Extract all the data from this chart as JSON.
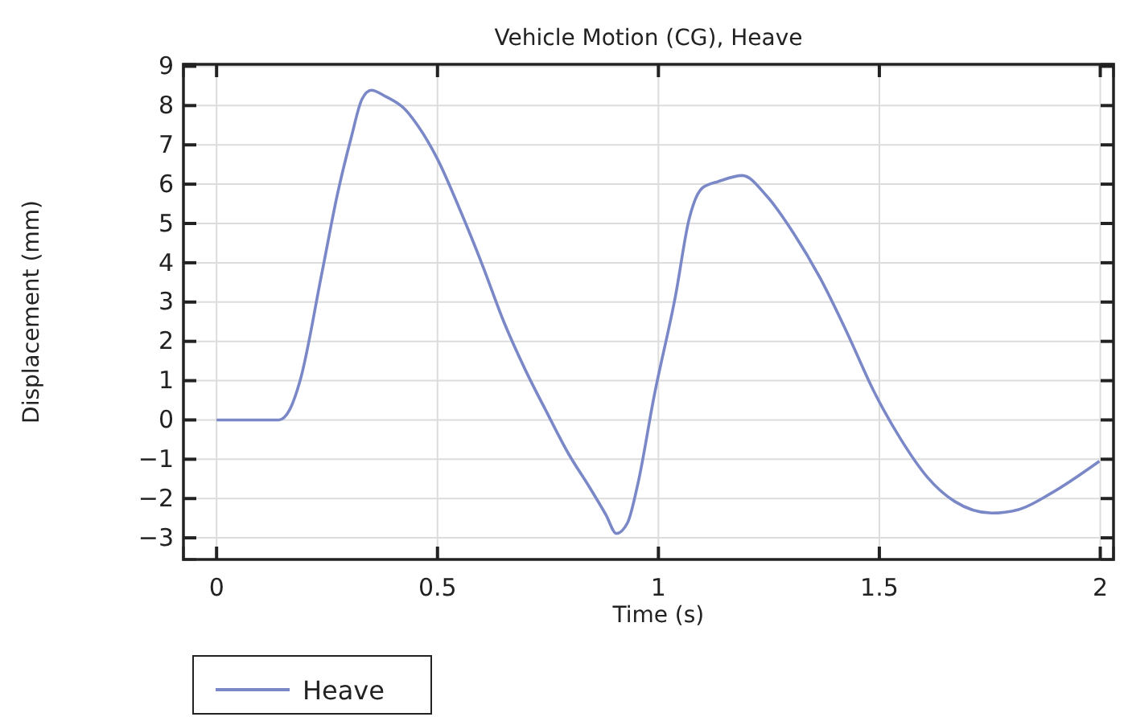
{
  "chart_data": {
    "type": "line",
    "title": "Vehicle Motion (CG), Heave",
    "xlabel": "Time (s)",
    "ylabel": "Displacement (mm)",
    "xlim": [
      -0.075,
      2.03
    ],
    "ylim": [
      -3.55,
      9.05
    ],
    "xticks": [
      0,
      0.5,
      1,
      1.5,
      2
    ],
    "yticks": [
      -3,
      -2,
      -1,
      0,
      1,
      2,
      3,
      4,
      5,
      6,
      7,
      8,
      9
    ],
    "grid": true,
    "legend": "bottom left",
    "marker": "none",
    "line_style": "solid",
    "series": [
      {
        "name": "Heave",
        "color": "#7b88c8",
        "x": [
          0,
          0.141,
          0.165,
          0.189,
          0.238,
          0.274,
          0.305,
          0.329,
          0.35,
          0.383,
          0.426,
          0.456,
          0.499,
          0.553,
          0.602,
          0.65,
          0.699,
          0.748,
          0.796,
          0.845,
          0.881,
          0.905,
          0.93,
          0.954,
          0.99,
          1.039,
          1.069,
          1.1,
          1.136,
          1.19,
          1.245,
          1.306,
          1.367,
          1.427,
          1.488,
          1.549,
          1.609,
          1.67,
          1.754,
          1.815,
          1.888,
          1.998
        ],
        "values": [
          0,
          0,
          0.25,
          1.0,
          3.72,
          5.77,
          7.2,
          8.16,
          8.39,
          8.23,
          7.91,
          7.48,
          6.66,
          5.29,
          3.93,
          2.5,
          1.27,
          0.18,
          -0.85,
          -1.73,
          -2.41,
          -2.89,
          -2.62,
          -1.6,
          0.59,
          3.18,
          5.09,
          5.91,
          6.07,
          6.22,
          5.7,
          4.75,
          3.59,
          2.22,
          0.72,
          -0.5,
          -1.46,
          -2.07,
          -2.37,
          -2.28,
          -1.87,
          -1.05
        ]
      }
    ]
  }
}
